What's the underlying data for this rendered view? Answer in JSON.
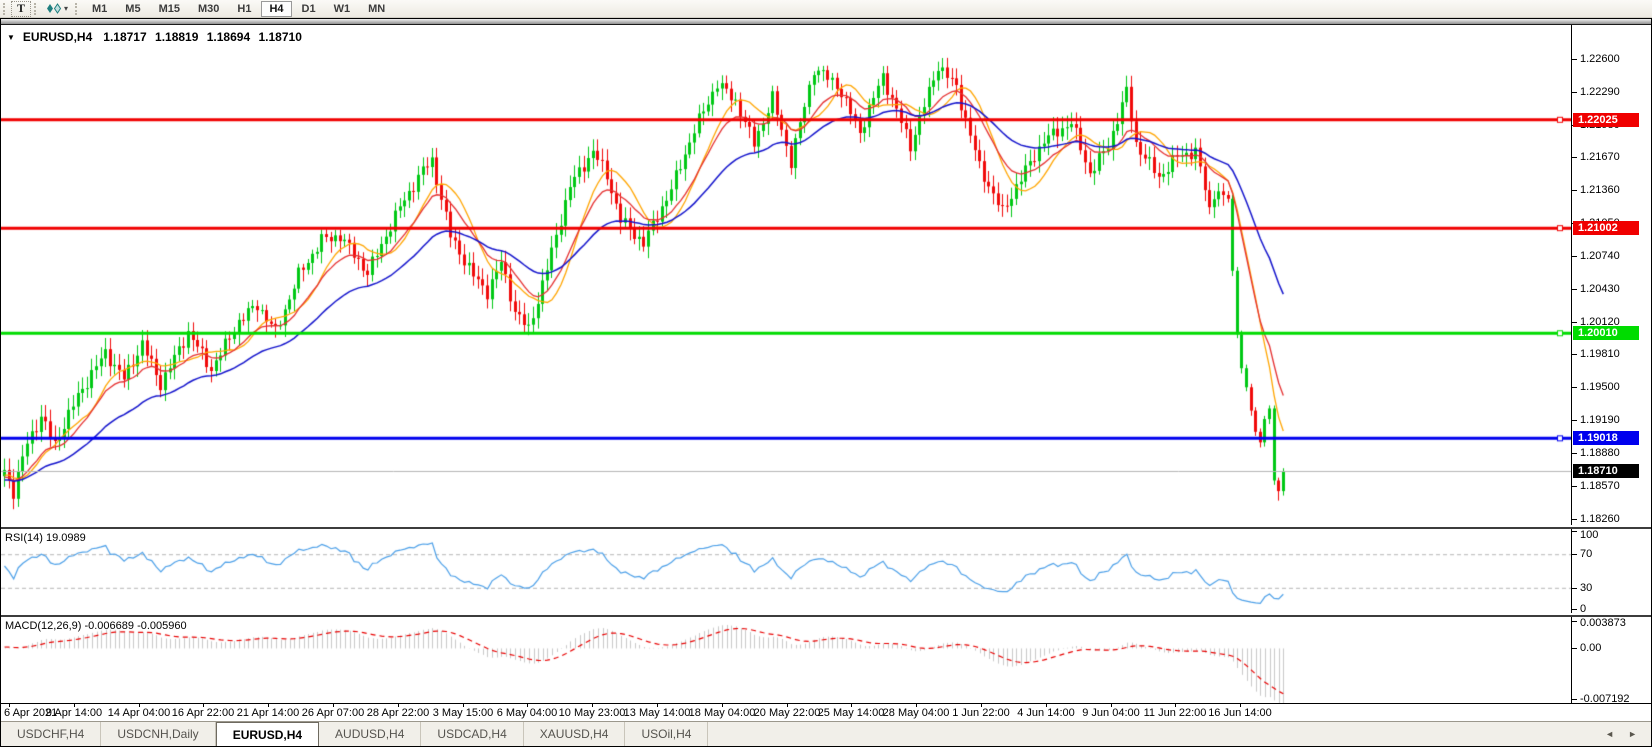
{
  "toolbar": {
    "text_tool_label": "T",
    "timeframes": [
      {
        "label": "M1",
        "active": false
      },
      {
        "label": "M5",
        "active": false
      },
      {
        "label": "M15",
        "active": false
      },
      {
        "label": "M30",
        "active": false
      },
      {
        "label": "H1",
        "active": false
      },
      {
        "label": "H4",
        "active": true
      },
      {
        "label": "D1",
        "active": false
      },
      {
        "label": "W1",
        "active": false
      },
      {
        "label": "MN",
        "active": false
      }
    ]
  },
  "chart_header": {
    "collapse_icon": "▼",
    "symbol": "EURUSD,H4",
    "open": "1.18717",
    "high": "1.18819",
    "low": "1.18694",
    "close": "1.18710"
  },
  "chart_data": {
    "type": "candlestick",
    "symbol": "EURUSD",
    "timeframe": "H4",
    "main": {
      "ylim": [
        1.182,
        1.2292
      ],
      "yticks": [
        "1.22600",
        "1.22290",
        "1.21980",
        "1.21670",
        "1.21360",
        "1.21050",
        "1.20740",
        "1.20430",
        "1.20120",
        "1.19810",
        "1.19500",
        "1.19190",
        "1.18880",
        "1.18570",
        "1.18260"
      ],
      "ytick_values": [
        1.226,
        1.2229,
        1.2198,
        1.2167,
        1.2136,
        1.2105,
        1.2074,
        1.2043,
        1.2012,
        1.1981,
        1.195,
        1.1919,
        1.1888,
        1.1857,
        1.1826
      ],
      "hlines": [
        {
          "price": 1.22025,
          "label": "1.22025",
          "color": "#f00000",
          "width": 3
        },
        {
          "price": 1.21002,
          "label": "1.21002",
          "color": "#f00000",
          "width": 3
        },
        {
          "price": 1.2001,
          "label": "1.20010",
          "color": "#00dc00",
          "width": 3
        },
        {
          "price": 1.19018,
          "label": "1.19018",
          "color": "#0000ee",
          "width": 3
        }
      ],
      "last_price": {
        "price": 1.1871,
        "label": "1.18710",
        "line_color": "#b4b4b4",
        "tag_bg": "#000000"
      },
      "up_color": "#00c814",
      "down_color": "#f00a0a",
      "candle_count": 279,
      "close_anchors": [
        [
          0,
          1.1872
        ],
        [
          2,
          1.1851
        ],
        [
          5,
          1.1898
        ],
        [
          8,
          1.1922
        ],
        [
          11,
          1.1896
        ],
        [
          16,
          1.1942
        ],
        [
          22,
          1.1983
        ],
        [
          26,
          1.1958
        ],
        [
          30,
          1.1991
        ],
        [
          34,
          1.1953
        ],
        [
          40,
          1.2002
        ],
        [
          45,
          1.1967
        ],
        [
          51,
          1.2012
        ],
        [
          55,
          1.2028
        ],
        [
          59,
          1.2002
        ],
        [
          64,
          1.2056
        ],
        [
          69,
          1.2089
        ],
        [
          73,
          1.2093
        ],
        [
          79,
          1.2058
        ],
        [
          86,
          1.212
        ],
        [
          91,
          1.2155
        ],
        [
          93,
          1.2164
        ],
        [
          97,
          1.2093
        ],
        [
          102,
          1.2055
        ],
        [
          105,
          1.204
        ],
        [
          108,
          1.2068
        ],
        [
          111,
          1.2022
        ],
        [
          114,
          1.2004
        ],
        [
          118,
          1.2062
        ],
        [
          123,
          1.214
        ],
        [
          128,
          1.2173
        ],
        [
          131,
          1.215
        ],
        [
          134,
          1.2108
        ],
        [
          139,
          1.2086
        ],
        [
          145,
          1.2137
        ],
        [
          150,
          1.2193
        ],
        [
          155,
          1.2237
        ],
        [
          159,
          1.222
        ],
        [
          163,
          1.218
        ],
        [
          167,
          1.2223
        ],
        [
          171,
          1.2163
        ],
        [
          176,
          1.2251
        ],
        [
          181,
          1.2236
        ],
        [
          186,
          1.2191
        ],
        [
          191,
          1.2244
        ],
        [
          197,
          1.2178
        ],
        [
          203,
          1.2254
        ],
        [
          207,
          1.2233
        ],
        [
          212,
          1.2158
        ],
        [
          217,
          1.2115
        ],
        [
          220,
          1.214
        ],
        [
          226,
          1.2183
        ],
        [
          232,
          1.22
        ],
        [
          236,
          1.2152
        ],
        [
          240,
          1.2178
        ],
        [
          244,
          1.2229
        ],
        [
          246,
          1.218
        ],
        [
          251,
          1.2148
        ],
        [
          255,
          1.2168
        ],
        [
          259,
          1.2173
        ],
        [
          262,
          1.212
        ],
        [
          264,
          1.2135
        ],
        [
          266,
          1.2128
        ],
        [
          267,
          1.206
        ],
        [
          268,
          1.2
        ],
        [
          269,
          1.1968
        ],
        [
          270,
          1.195
        ],
        [
          271,
          1.1928
        ],
        [
          272,
          1.1908
        ],
        [
          273,
          1.1898
        ],
        [
          274,
          1.192
        ],
        [
          275,
          1.193
        ],
        [
          276,
          1.1862
        ],
        [
          277,
          1.1852
        ],
        [
          278,
          1.1871
        ]
      ],
      "green_down_candles": [
        267,
        268,
        269,
        270,
        276
      ],
      "deep_wick": {
        "index": 277,
        "low": 1.1843
      },
      "moving_averages": [
        {
          "name": "fast",
          "type": "sma",
          "period": 10,
          "color": "#ffa500"
        },
        {
          "name": "medium",
          "type": "ema",
          "period": 13,
          "color": "#e53030"
        },
        {
          "name": "slow",
          "type": "ema",
          "period": 34,
          "color": "#1414cc"
        }
      ]
    },
    "rsi": {
      "label": "RSI(14) 19.0989",
      "period": 14,
      "last_value": 19.0989,
      "ylim": [
        0,
        100
      ],
      "yticks": [
        "100",
        "70",
        "30",
        "0"
      ],
      "ytick_values": [
        100,
        70,
        30,
        0
      ],
      "levels": [
        70,
        30
      ],
      "line_color": "#4da0e8",
      "level_color": "#b5b5b5"
    },
    "macd": {
      "label": "MACD(12,26,9) -0.006689 -0.005960",
      "fast": 12,
      "slow": 26,
      "signal": 9,
      "macd_value": -0.006689,
      "signal_value": -0.00596,
      "ylim": [
        -0.00755,
        0.00435
      ],
      "yticks": [
        "0.003873",
        "0.00",
        "-0.007192"
      ],
      "ytick_values": [
        0.003873,
        0,
        -0.007192
      ],
      "hist_color": "#c9c9c9",
      "signal_color": "#e80000"
    },
    "x_axis": {
      "labels": [
        "6 Apr 2021",
        "9 Apr 14:00",
        "14 Apr 04:00",
        "16 Apr 22:00",
        "21 Apr 14:00",
        "26 Apr 07:00",
        "28 Apr 22:00",
        "3 May 15:00",
        "6 May 04:00",
        "10 May 23:00",
        "13 May 14:00",
        "18 May 04:00",
        "20 May 22:00",
        "25 May 14:00",
        "28 May 04:00",
        "1 Jun 22:00",
        "4 Jun 14:00",
        "9 Jun 04:00",
        "11 Jun 22:00",
        "16 Jun 14:00"
      ]
    }
  },
  "tabs": [
    {
      "label": "USDCHF,H4",
      "active": false
    },
    {
      "label": "USDCNH,Daily",
      "active": false
    },
    {
      "label": "EURUSD,H4",
      "active": true
    },
    {
      "label": "AUDUSD,H4",
      "active": false
    },
    {
      "label": "USDCAD,H4",
      "active": false
    },
    {
      "label": "XAUUSD,H4",
      "active": false
    },
    {
      "label": "USOil,H4",
      "active": false
    }
  ],
  "tab_arrows": {
    "left": "◄",
    "right": "►"
  }
}
